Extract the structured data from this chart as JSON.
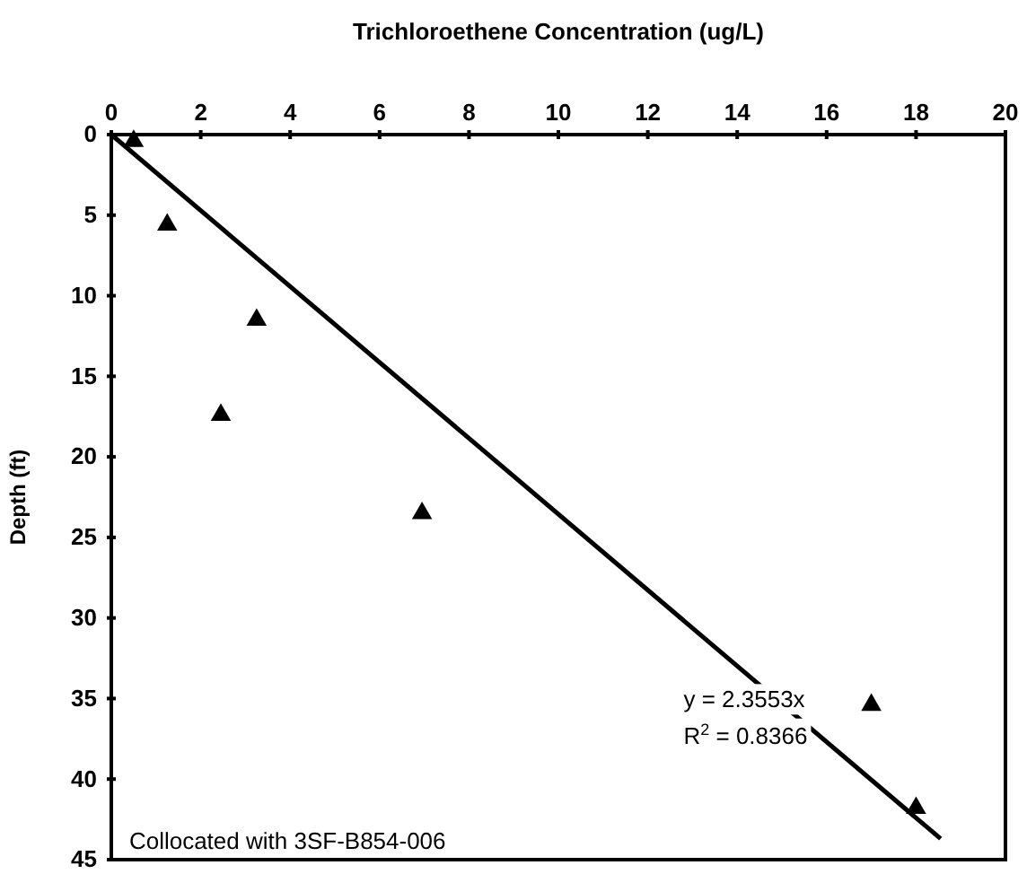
{
  "chart_data": {
    "type": "scatter",
    "xlabel": "Trichloroethene Concentration (ug/L)",
    "ylabel": "Depth (ft)",
    "xlim": [
      0,
      20
    ],
    "xticks": [
      0,
      2,
      4,
      6,
      8,
      10,
      12,
      14,
      16,
      18,
      20
    ],
    "ylim": [
      45,
      0
    ],
    "yticks": [
      0,
      5,
      10,
      15,
      20,
      25,
      30,
      35,
      40,
      45
    ],
    "grid": false,
    "series": [
      {
        "color": "#000000",
        "marker": "triangle",
        "x": [
          0.5,
          1.25,
          3.25,
          2.45,
          6.95,
          17.0,
          18.0
        ],
        "values": [
          0.4,
          5.6,
          11.5,
          17.4,
          23.5,
          35.4,
          41.8
        ]
      },
      {
        "type": "line",
        "color": "#000000",
        "line_style": "solid",
        "x": [
          0,
          18.55
        ],
        "values": [
          0,
          43.7
        ]
      }
    ],
    "annotations": [
      "y = 2.3553x",
      "R$^{2}$ = 0.8366",
      "Collocated with 3SF-B854-006"
    ]
  }
}
